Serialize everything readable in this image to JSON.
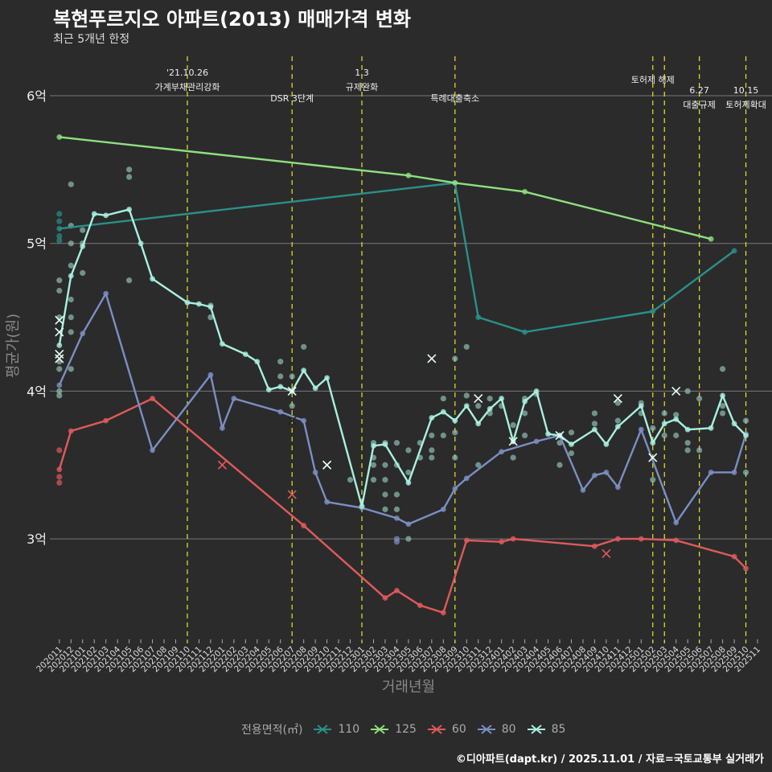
{
  "header": {
    "title": "복현푸르지오 아파트(2013) 매매가격 변화",
    "subtitle": "최근 5개년 한정"
  },
  "footer": "©디아파트(dapt.kr) / 2025.11.01 / 자료=국토교통부 실거래가",
  "chart_data": {
    "type": "line",
    "xlabel": "거래년월",
    "ylabel": "평균가(원)",
    "ylim": [
      2.35,
      6.3
    ],
    "yticks": [
      {
        "v": 3,
        "label": "3억"
      },
      {
        "v": 4,
        "label": "4억"
      },
      {
        "v": 5,
        "label": "5억"
      },
      {
        "v": 6,
        "label": "6억"
      }
    ],
    "x": [
      "202011",
      "202012",
      "202101",
      "202102",
      "202103",
      "202104",
      "202105",
      "202106",
      "202107",
      "202108",
      "202109",
      "202110",
      "202111",
      "202112",
      "202201",
      "202202",
      "202203",
      "202204",
      "202205",
      "202206",
      "202207",
      "202208",
      "202209",
      "202210",
      "202211",
      "202212",
      "202301",
      "202302",
      "202303",
      "202304",
      "202305",
      "202306",
      "202307",
      "202308",
      "202309",
      "202310",
      "202311",
      "202312",
      "202401",
      "202402",
      "202403",
      "202404",
      "202405",
      "202406",
      "202407",
      "202408",
      "202409",
      "202410",
      "202411",
      "202412",
      "202501",
      "202502",
      "202503",
      "202504",
      "202505",
      "202506",
      "202507",
      "202508",
      "202509",
      "202510",
      "202511"
    ],
    "legend": {
      "title": "전용면적(㎡)",
      "placement": "bottom"
    },
    "series": [
      {
        "name": "110",
        "color": "#2a9088",
        "points": [
          [
            0,
            5.1
          ],
          [
            34,
            5.41
          ],
          [
            36,
            4.5
          ],
          [
            40,
            4.4
          ],
          [
            51,
            4.54
          ],
          [
            58,
            4.95
          ]
        ]
      },
      {
        "name": "125",
        "color": "#8ee07e",
        "points": [
          [
            0,
            5.72
          ],
          [
            30,
            5.46
          ],
          [
            34,
            5.41
          ],
          [
            40,
            5.35
          ],
          [
            56,
            5.03
          ]
        ]
      },
      {
        "name": "60",
        "color": "#e05a5a",
        "points": [
          [
            0,
            3.47
          ],
          [
            1,
            3.73
          ],
          [
            4,
            3.8
          ],
          [
            8,
            3.95
          ],
          [
            21,
            3.09
          ],
          [
            28,
            2.6
          ],
          [
            29,
            2.65
          ],
          [
            31,
            2.55
          ],
          [
            33,
            2.5
          ],
          [
            35,
            2.99
          ],
          [
            38,
            2.98
          ],
          [
            39,
            3.0
          ],
          [
            46,
            2.95
          ],
          [
            48,
            3.0
          ],
          [
            50,
            3.0
          ],
          [
            53,
            2.99
          ],
          [
            58,
            2.88
          ],
          [
            59,
            2.8
          ]
        ]
      },
      {
        "name": "80",
        "color": "#7b8fc4",
        "points": [
          [
            0,
            4.04
          ],
          [
            2,
            4.39
          ],
          [
            4,
            4.66
          ],
          [
            8,
            3.6
          ],
          [
            13,
            4.11
          ],
          [
            14,
            3.75
          ],
          [
            15,
            3.95
          ],
          [
            19,
            3.86
          ],
          [
            21,
            3.8
          ],
          [
            22,
            3.45
          ],
          [
            23,
            3.25
          ],
          [
            26,
            3.21
          ],
          [
            29,
            3.14
          ],
          [
            30,
            3.1
          ],
          [
            33,
            3.2
          ],
          [
            34,
            3.34
          ],
          [
            35,
            3.41
          ],
          [
            38,
            3.59
          ],
          [
            41,
            3.66
          ],
          [
            43,
            3.7
          ],
          [
            45,
            3.33
          ],
          [
            46,
            3.43
          ],
          [
            47,
            3.45
          ],
          [
            48,
            3.35
          ],
          [
            50,
            3.74
          ],
          [
            53,
            3.11
          ],
          [
            56,
            3.45
          ],
          [
            58,
            3.45
          ],
          [
            59,
            3.71
          ]
        ]
      },
      {
        "name": "85",
        "color": "#a8f0e0",
        "points": [
          [
            0,
            4.31
          ],
          [
            1,
            4.78
          ],
          [
            2,
            4.98
          ],
          [
            3,
            5.2
          ],
          [
            4,
            5.19
          ],
          [
            6,
            5.23
          ],
          [
            7,
            5.0
          ],
          [
            8,
            4.76
          ],
          [
            11,
            4.6
          ],
          [
            12,
            4.59
          ],
          [
            13,
            4.57
          ],
          [
            14,
            4.32
          ],
          [
            16,
            4.25
          ],
          [
            17,
            4.2
          ],
          [
            18,
            4.01
          ],
          [
            19,
            4.03
          ],
          [
            20,
            4.0
          ],
          [
            21,
            4.14
          ],
          [
            22,
            4.02
          ],
          [
            23,
            4.09
          ],
          [
            26,
            3.22
          ],
          [
            27,
            3.63
          ],
          [
            28,
            3.64
          ],
          [
            30,
            3.38
          ],
          [
            32,
            3.82
          ],
          [
            33,
            3.86
          ],
          [
            34,
            3.8
          ],
          [
            35,
            3.9
          ],
          [
            36,
            3.78
          ],
          [
            37,
            3.88
          ],
          [
            38,
            3.95
          ],
          [
            39,
            3.66
          ],
          [
            40,
            3.93
          ],
          [
            41,
            4.0
          ],
          [
            42,
            3.71
          ],
          [
            43,
            3.7
          ],
          [
            44,
            3.64
          ],
          [
            46,
            3.74
          ],
          [
            47,
            3.64
          ],
          [
            48,
            3.76
          ],
          [
            50,
            3.9
          ],
          [
            51,
            3.65
          ],
          [
            52,
            3.78
          ],
          [
            53,
            3.81
          ],
          [
            54,
            3.74
          ],
          [
            56,
            3.75
          ],
          [
            57,
            3.97
          ],
          [
            58,
            3.78
          ],
          [
            59,
            3.7
          ]
        ]
      }
    ],
    "transactions": [
      [
        0,
        5.2,
        "110"
      ],
      [
        0,
        5.15,
        "110"
      ],
      [
        0,
        5.05,
        "110"
      ],
      [
        0,
        5.02,
        "110"
      ],
      [
        0,
        4.75,
        "85"
      ],
      [
        0,
        4.68,
        "85"
      ],
      [
        0,
        4.5,
        "85"
      ],
      [
        0,
        4.2,
        "85"
      ],
      [
        0,
        4.15,
        "85"
      ],
      [
        0,
        4.0,
        "85"
      ],
      [
        0,
        3.97,
        "85"
      ],
      [
        1,
        5.4,
        "85"
      ],
      [
        1,
        5.12,
        "85"
      ],
      [
        1,
        5.0,
        "85"
      ],
      [
        1,
        4.85,
        "85"
      ],
      [
        1,
        4.62,
        "85"
      ],
      [
        1,
        4.5,
        "85"
      ],
      [
        1,
        4.4,
        "85"
      ],
      [
        1,
        4.15,
        "85"
      ],
      [
        2,
        5.09,
        "85"
      ],
      [
        2,
        5.0,
        "85"
      ],
      [
        2,
        4.8,
        "85"
      ],
      [
        6,
        5.5,
        "85"
      ],
      [
        6,
        5.45,
        "85"
      ],
      [
        6,
        4.75,
        "85"
      ],
      [
        13,
        4.58,
        "85"
      ],
      [
        13,
        4.5,
        "85"
      ],
      [
        19,
        4.2,
        "85"
      ],
      [
        19,
        4.1,
        "85"
      ],
      [
        20,
        4.1,
        "85"
      ],
      [
        20,
        3.9,
        "85"
      ],
      [
        21,
        4.3,
        "85"
      ],
      [
        25,
        3.4,
        "85"
      ],
      [
        27,
        3.65,
        "85"
      ],
      [
        27,
        3.55,
        "85"
      ],
      [
        27,
        3.5,
        "85"
      ],
      [
        27,
        3.4,
        "85"
      ],
      [
        28,
        3.65,
        "85"
      ],
      [
        28,
        3.5,
        "85"
      ],
      [
        28,
        3.4,
        "85"
      ],
      [
        28,
        3.3,
        "85"
      ],
      [
        28,
        3.2,
        "85"
      ],
      [
        29,
        3.65,
        "85"
      ],
      [
        29,
        3.5,
        "85"
      ],
      [
        29,
        3.3,
        "85"
      ],
      [
        29,
        3.2,
        "85"
      ],
      [
        29,
        2.98,
        "80"
      ],
      [
        29,
        3.0,
        "80"
      ],
      [
        30,
        3.0,
        "85"
      ],
      [
        30,
        3.6,
        "85"
      ],
      [
        30,
        3.45,
        "85"
      ],
      [
        31,
        3.65,
        "85"
      ],
      [
        31,
        3.55,
        "85"
      ],
      [
        32,
        3.7,
        "85"
      ],
      [
        32,
        3.6,
        "85"
      ],
      [
        32,
        3.55,
        "85"
      ],
      [
        33,
        3.95,
        "85"
      ],
      [
        33,
        3.7,
        "85"
      ],
      [
        34,
        4.22,
        "85"
      ],
      [
        34,
        3.72,
        "85"
      ],
      [
        34,
        3.55,
        "85"
      ],
      [
        35,
        4.3,
        "85"
      ],
      [
        35,
        3.97,
        "85"
      ],
      [
        36,
        3.9,
        "85"
      ],
      [
        36,
        3.5,
        "85"
      ],
      [
        37,
        3.95,
        "85"
      ],
      [
        37,
        3.85,
        "85"
      ],
      [
        38,
        3.9,
        "85"
      ],
      [
        39,
        3.77,
        "85"
      ],
      [
        39,
        3.55,
        "85"
      ],
      [
        40,
        3.95,
        "85"
      ],
      [
        40,
        3.85,
        "85"
      ],
      [
        40,
        3.7,
        "85"
      ],
      [
        41,
        3.98,
        "85"
      ],
      [
        43,
        3.65,
        "85"
      ],
      [
        43,
        3.5,
        "85"
      ],
      [
        44,
        3.72,
        "85"
      ],
      [
        44,
        3.58,
        "85"
      ],
      [
        46,
        3.85,
        "85"
      ],
      [
        46,
        3.78,
        "85"
      ],
      [
        48,
        3.92,
        "85"
      ],
      [
        48,
        3.8,
        "85"
      ],
      [
        50,
        3.92,
        "85"
      ],
      [
        50,
        3.85,
        "85"
      ],
      [
        51,
        3.75,
        "85"
      ],
      [
        51,
        3.4,
        "85"
      ],
      [
        52,
        3.85,
        "85"
      ],
      [
        52,
        3.7,
        "85"
      ],
      [
        53,
        3.84,
        "85"
      ],
      [
        53,
        3.7,
        "85"
      ],
      [
        54,
        4.0,
        "85"
      ],
      [
        54,
        3.65,
        "85"
      ],
      [
        54,
        3.6,
        "85"
      ],
      [
        55,
        3.95,
        "85"
      ],
      [
        55,
        3.6,
        "85"
      ],
      [
        57,
        4.15,
        "85"
      ],
      [
        57,
        3.9,
        "85"
      ],
      [
        57,
        3.85,
        "85"
      ],
      [
        59,
        3.8,
        "85"
      ],
      [
        59,
        3.45,
        "85"
      ],
      [
        0,
        3.6,
        "60"
      ],
      [
        0,
        3.42,
        "60"
      ],
      [
        0,
        3.38,
        "60"
      ]
    ],
    "cancelled": [
      [
        0,
        4.48,
        "85"
      ],
      [
        0,
        4.4,
        "85"
      ],
      [
        0,
        4.25,
        "85"
      ],
      [
        0,
        4.22,
        "85"
      ],
      [
        20,
        4.0,
        "85"
      ],
      [
        23,
        3.5,
        "85"
      ],
      [
        32,
        4.22,
        "85"
      ],
      [
        36,
        3.95,
        "85"
      ],
      [
        39,
        3.66,
        "85"
      ],
      [
        43,
        3.7,
        "85"
      ],
      [
        48,
        3.95,
        "85"
      ],
      [
        51,
        3.55,
        "85"
      ],
      [
        53,
        4.0,
        "85"
      ],
      [
        20,
        3.8,
        "80"
      ],
      [
        14,
        3.5,
        "60"
      ],
      [
        20,
        3.3,
        "60"
      ],
      [
        47,
        2.9,
        "60"
      ]
    ],
    "events": [
      {
        "idx": 11,
        "lines": [
          "'21.10.26",
          "가계부채관리강화"
        ],
        "row": 0
      },
      {
        "idx": 20,
        "lines": [
          "DSR 3단계"
        ],
        "row": 2
      },
      {
        "idx": 26,
        "lines": [
          "1.3",
          "규제완화"
        ],
        "row": 0
      },
      {
        "idx": 34,
        "lines": [
          "특례대출축소"
        ],
        "row": 2
      },
      {
        "idx": 51,
        "lines": [
          "토허제 해제"
        ],
        "row": 1
      },
      {
        "idx": 52,
        "lines": [],
        "row": 0
      },
      {
        "idx": 55,
        "lines": [
          "6.27",
          "대출규제"
        ],
        "row": 3
      },
      {
        "idx": 59,
        "lines": [
          "10.15",
          "토허제확대"
        ],
        "row": 3
      }
    ]
  }
}
